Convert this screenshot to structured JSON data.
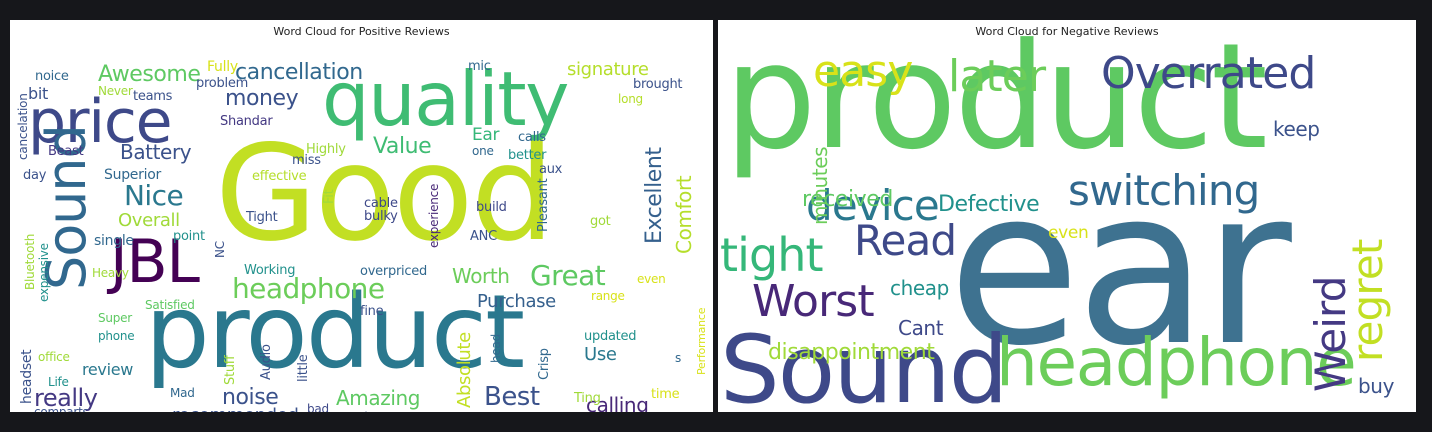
{
  "chart_data": [
    {
      "type": "wordcloud",
      "title": "Word Cloud for Positive Reviews",
      "words": [
        {
          "text": "Good",
          "weight": 100,
          "color": "#c2df23"
        },
        {
          "text": "product",
          "weight": 90,
          "color": "#2a788e"
        },
        {
          "text": "quality",
          "weight": 55,
          "color": "#3fbc73"
        },
        {
          "text": "price",
          "weight": 48,
          "color": "#3e4989"
        },
        {
          "text": "JBL",
          "weight": 42,
          "color": "#440154"
        },
        {
          "text": "Sound",
          "weight": 40,
          "color": "#31688e"
        },
        {
          "text": "headphone",
          "weight": 22,
          "color": "#6ccd5a"
        },
        {
          "text": "Great",
          "weight": 20,
          "color": "#5ec962"
        },
        {
          "text": "Nice",
          "weight": 19,
          "color": "#2a788e"
        },
        {
          "text": "Awesome",
          "weight": 17,
          "color": "#5ec962"
        },
        {
          "text": "cancellation",
          "weight": 17,
          "color": "#31688e"
        },
        {
          "text": "money",
          "weight": 16,
          "color": "#3b528b"
        },
        {
          "text": "Best",
          "weight": 16,
          "color": "#3b528b"
        },
        {
          "text": "Excellent",
          "weight": 16,
          "color": "#35608d"
        },
        {
          "text": "Battery",
          "weight": 15,
          "color": "#3b528b"
        },
        {
          "text": "Value",
          "weight": 15,
          "color": "#3fbc73"
        },
        {
          "text": "really",
          "weight": 15,
          "color": "#443983"
        },
        {
          "text": "noise",
          "weight": 14,
          "color": "#3b528b"
        },
        {
          "text": "Comfort",
          "weight": 14,
          "color": "#b5de2b"
        },
        {
          "text": "Amazing",
          "weight": 14,
          "color": "#5ec962"
        },
        {
          "text": "Worth",
          "weight": 13,
          "color": "#6ccd5a"
        },
        {
          "text": "calling",
          "weight": 13,
          "color": "#482878"
        },
        {
          "text": "signature",
          "weight": 13,
          "color": "#b5de2b"
        },
        {
          "text": "Purchase",
          "weight": 12,
          "color": "#35608d"
        },
        {
          "text": "Overall",
          "weight": 12,
          "color": "#a0da39"
        },
        {
          "text": "Absolute",
          "weight": 12,
          "color": "#c2df23"
        },
        {
          "text": "Use",
          "weight": 12,
          "color": "#2a788e"
        },
        {
          "text": "recommended",
          "weight": 11,
          "color": "#3b528b"
        },
        {
          "text": "review",
          "weight": 11,
          "color": "#2a788e"
        },
        {
          "text": "headset",
          "weight": 11,
          "color": "#3b528b"
        },
        {
          "text": "Ear",
          "weight": 11,
          "color": "#35b779"
        },
        {
          "text": "Fully",
          "weight": 10,
          "color": "#d8e219"
        },
        {
          "text": "noice",
          "weight": 10,
          "color": "#31688e"
        },
        {
          "text": "bit",
          "weight": 10,
          "color": "#3b528b"
        },
        {
          "text": "problem",
          "weight": 9,
          "color": "#3b528b"
        },
        {
          "text": "Superior",
          "weight": 9,
          "color": "#31688e"
        },
        {
          "text": "single",
          "weight": 9,
          "color": "#31688e"
        },
        {
          "text": "point",
          "weight": 9,
          "color": "#21918c"
        },
        {
          "text": "Working",
          "weight": 9,
          "color": "#21918c"
        },
        {
          "text": "overpriced",
          "weight": 9,
          "color": "#31688e"
        },
        {
          "text": "effective",
          "weight": 9,
          "color": "#b5de2b"
        },
        {
          "text": "Highly",
          "weight": 9,
          "color": "#a0da39"
        },
        {
          "text": "cable",
          "weight": 9,
          "color": "#3e4989"
        },
        {
          "text": "bulky",
          "weight": 9,
          "color": "#3e4989"
        },
        {
          "text": "build",
          "weight": 9,
          "color": "#3e4989"
        },
        {
          "text": "Tight",
          "weight": 9,
          "color": "#3b528b"
        },
        {
          "text": "mic",
          "weight": 9,
          "color": "#31688e"
        },
        {
          "text": "brought",
          "weight": 9,
          "color": "#3b528b"
        },
        {
          "text": "Crisp",
          "weight": 9,
          "color": "#31688e"
        },
        {
          "text": "got",
          "weight": 9,
          "color": "#a0da39"
        },
        {
          "text": "Pleasant",
          "weight": 9,
          "color": "#31688e"
        },
        {
          "text": "Audio",
          "weight": 9,
          "color": "#3b528b"
        },
        {
          "text": "Stuff",
          "weight": 9,
          "color": "#a0da39"
        },
        {
          "text": "little",
          "weight": 9,
          "color": "#3b528b"
        },
        {
          "text": "updated",
          "weight": 9,
          "color": "#21918c"
        },
        {
          "text": "head",
          "weight": 9,
          "color": "#31688e"
        },
        {
          "text": "Ting",
          "weight": 9,
          "color": "#a0da39"
        },
        {
          "text": "time",
          "weight": 9,
          "color": "#d8e219"
        },
        {
          "text": "Performance",
          "weight": 9,
          "color": "#d8e219"
        },
        {
          "text": "experience",
          "weight": 9,
          "color": "#482878"
        },
        {
          "text": "Comfortable",
          "weight": 9,
          "color": "#d8e219"
        },
        {
          "text": "range",
          "weight": 9,
          "color": "#d8e219"
        },
        {
          "text": "even",
          "weight": 9,
          "color": "#d8e219"
        },
        {
          "text": "ANC",
          "weight": 9,
          "color": "#3b528b"
        },
        {
          "text": "calls",
          "weight": 9,
          "color": "#31688e"
        },
        {
          "text": "better",
          "weight": 9,
          "color": "#21918c"
        },
        {
          "text": "one",
          "weight": 9,
          "color": "#31688e"
        },
        {
          "text": "long",
          "weight": 9,
          "color": "#b5de2b"
        },
        {
          "text": "aux",
          "weight": 9,
          "color": "#3b528b"
        },
        {
          "text": "miss",
          "weight": 9,
          "color": "#3b528b"
        },
        {
          "text": "Shandar",
          "weight": 9,
          "color": "#443983"
        },
        {
          "text": "teams",
          "weight": 9,
          "color": "#3b528b"
        },
        {
          "text": "Never",
          "weight": 9,
          "color": "#a0da39"
        },
        {
          "text": "Beast",
          "weight": 9,
          "color": "#443983"
        },
        {
          "text": "day",
          "weight": 9,
          "color": "#3b528b"
        },
        {
          "text": "cancelation",
          "weight": 9,
          "color": "#3b528b"
        },
        {
          "text": "Bluetooth",
          "weight": 9,
          "color": "#a0da39"
        },
        {
          "text": "expensive",
          "weight": 9,
          "color": "#21918c"
        },
        {
          "text": "Heavy",
          "weight": 9,
          "color": "#a0da39"
        },
        {
          "text": "Super",
          "weight": 9,
          "color": "#5ec962"
        },
        {
          "text": "phone",
          "weight": 9,
          "color": "#21918c"
        },
        {
          "text": "office",
          "weight": 9,
          "color": "#a0da39"
        },
        {
          "text": "Life",
          "weight": 9,
          "color": "#21918c"
        },
        {
          "text": "Mad",
          "weight": 9,
          "color": "#31688e"
        },
        {
          "text": "comparts",
          "weight": 9,
          "color": "#3b528b"
        },
        {
          "text": "Satisfied",
          "weight": 9,
          "color": "#5ec962"
        },
        {
          "text": "NC",
          "weight": 9,
          "color": "#3b528b"
        },
        {
          "text": "Fit",
          "weight": 9,
          "color": "#a0da39"
        },
        {
          "text": "fine",
          "weight": 9,
          "color": "#3b528b"
        },
        {
          "text": "bad",
          "weight": 9,
          "color": "#3e4989"
        },
        {
          "text": "work",
          "weight": 9,
          "color": "#3b528b"
        },
        {
          "text": "s",
          "weight": 9,
          "color": "#31688e"
        }
      ]
    },
    {
      "type": "wordcloud",
      "title": "Word Cloud for Negative Reviews",
      "words": [
        {
          "text": "ear",
          "weight": 100,
          "color": "#3e7290"
        },
        {
          "text": "product",
          "weight": 85,
          "color": "#5ec962"
        },
        {
          "text": "Sound",
          "weight": 45,
          "color": "#3e4989"
        },
        {
          "text": "headphone",
          "weight": 40,
          "color": "#6ccd5a"
        },
        {
          "text": "Overrated",
          "weight": 28,
          "color": "#3e4989"
        },
        {
          "text": "switching",
          "weight": 27,
          "color": "#31688e"
        },
        {
          "text": "later",
          "weight": 27,
          "color": "#6ccd5a"
        },
        {
          "text": "easy",
          "weight": 27,
          "color": "#d8e219"
        },
        {
          "text": "device",
          "weight": 27,
          "color": "#2a788e"
        },
        {
          "text": "tight",
          "weight": 27,
          "color": "#35b779"
        },
        {
          "text": "Worst",
          "weight": 27,
          "color": "#482878"
        },
        {
          "text": "Read",
          "weight": 26,
          "color": "#3e4989"
        },
        {
          "text": "Weird",
          "weight": 24,
          "color": "#443983"
        },
        {
          "text": "regret",
          "weight": 24,
          "color": "#c2df23"
        },
        {
          "text": "Defective",
          "weight": 17,
          "color": "#21918c"
        },
        {
          "text": "disappointment",
          "weight": 16,
          "color": "#a0da39"
        },
        {
          "text": "received",
          "weight": 15,
          "color": "#5ec962"
        },
        {
          "text": "minutes",
          "weight": 15,
          "color": "#6ccd5a"
        },
        {
          "text": "cheap",
          "weight": 15,
          "color": "#21918c"
        },
        {
          "text": "Cant",
          "weight": 15,
          "color": "#3e4989"
        },
        {
          "text": "buy",
          "weight": 15,
          "color": "#3b528b"
        },
        {
          "text": "keep",
          "weight": 15,
          "color": "#3b528b"
        },
        {
          "text": "even",
          "weight": 13,
          "color": "#d8e219"
        }
      ]
    }
  ]
}
